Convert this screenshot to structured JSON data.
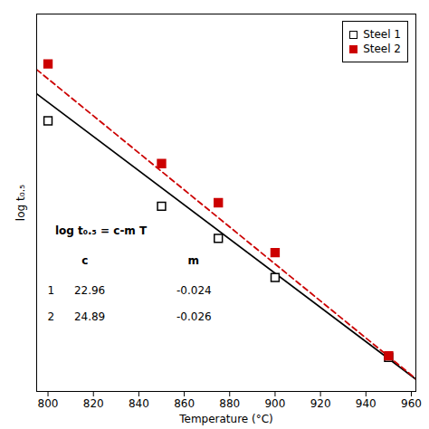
{
  "chart_data": {
    "type": "scatter",
    "xlabel": "Temperature (°C)",
    "ylabel": "log t₀.₅",
    "xlim": [
      795,
      962
    ],
    "ylim": [
      -0.3,
      5.0
    ],
    "xticks": [
      800,
      820,
      840,
      860,
      880,
      900,
      920,
      940,
      960
    ],
    "tick_labels": "x",
    "legend": "upper right",
    "series": [
      {
        "name": "Steel 1",
        "type": "scatter",
        "marker": "open_square",
        "color": "#000000",
        "x": [
          800,
          850,
          875,
          900,
          950
        ],
        "values": [
          3.5,
          2.3,
          1.85,
          1.3,
          0.18
        ]
      },
      {
        "name": "Steel 2",
        "type": "scatter",
        "marker": "square",
        "color": "#cc0000",
        "x": [
          800,
          850,
          875,
          900,
          950
        ],
        "values": [
          4.3,
          2.9,
          2.35,
          1.65,
          0.2
        ]
      },
      {
        "type": "line",
        "line_style": "solid",
        "color": "#000000",
        "x": [
          795,
          962
        ],
        "values": [
          3.88,
          -0.128
        ]
      },
      {
        "type": "line",
        "line_style": "dashed",
        "color": "#cc0000",
        "x": [
          795,
          962
        ],
        "values": [
          4.22,
          -0.122
        ]
      }
    ],
    "annotations": [
      {
        "text": "log t₀.₅ = c-m T"
      }
    ],
    "table": {
      "columns": [
        "c",
        "m"
      ],
      "rows": [
        {
          "label": "1",
          "values": [
            22.96,
            -0.024
          ]
        },
        {
          "label": "2",
          "values": [
            24.89,
            -0.026
          ]
        }
      ]
    }
  }
}
